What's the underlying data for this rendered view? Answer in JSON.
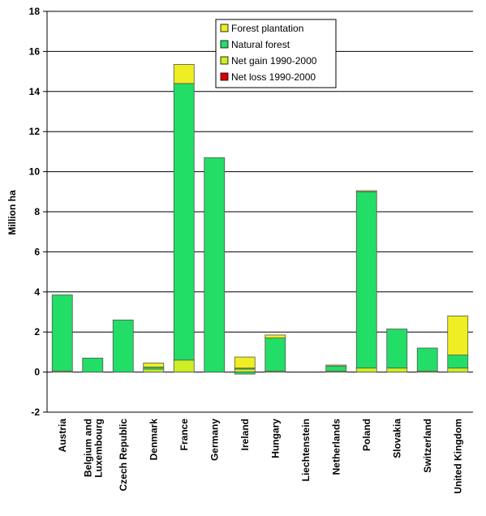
{
  "chart_data": {
    "type": "bar",
    "stacked": true,
    "ylabel": "Million ha",
    "xlabel": "",
    "ylim": [
      -2,
      18
    ],
    "yticks": [
      -2,
      0,
      2,
      4,
      6,
      8,
      10,
      12,
      14,
      16,
      18
    ],
    "grid": true,
    "legend_position": "top-center",
    "categories": [
      "Austria",
      "Belgium and Luxembourg",
      "Czech Republic",
      "Denmark",
      "France",
      "Germany",
      "Ireland",
      "Hungary",
      "Liechtenstein",
      "Netherlands",
      "Poland",
      "Slovakia",
      "Switzerland",
      "United Kingdom"
    ],
    "category_lines": [
      [
        "Austria"
      ],
      [
        "Belgium and",
        "Luxembourg"
      ],
      [
        "Czech Republic"
      ],
      [
        "Denmark"
      ],
      [
        "France"
      ],
      [
        "Germany"
      ],
      [
        "Ireland"
      ],
      [
        "Hungary"
      ],
      [
        "Liechtenstein"
      ],
      [
        "Netherlands"
      ],
      [
        "Poland"
      ],
      [
        "Slovakia"
      ],
      [
        "Switzerland"
      ],
      [
        "United Kingdom"
      ]
    ],
    "series": [
      {
        "name": "Net gain 1990-2000",
        "color": "#ccee22",
        "values": [
          0.05,
          0,
          0,
          0.15,
          0.6,
          0,
          0.15,
          0.05,
          0,
          0.05,
          0.2,
          0.2,
          0.05,
          0.2
        ]
      },
      {
        "name": "Natural forest",
        "color": "#22dd66",
        "values": [
          3.8,
          0.7,
          2.6,
          0.1,
          13.8,
          10.7,
          0.05,
          1.65,
          0,
          0.25,
          8.8,
          1.95,
          1.15,
          0.65
        ]
      },
      {
        "name": "Forest plantation",
        "color": "#eeee22",
        "values": [
          0,
          0,
          0,
          0.2,
          0.95,
          0,
          0.55,
          0.15,
          0,
          0.05,
          0.05,
          0,
          0,
          1.95
        ]
      },
      {
        "name": "Net loss 1990-2000",
        "color": "#dd0000",
        "values": [
          0,
          0,
          0,
          0,
          0,
          0,
          0,
          0,
          0,
          0,
          0,
          0,
          0,
          0
        ]
      }
    ],
    "below_zero": {
      "name": "Natural forest",
      "color": "#22dd66",
      "values": [
        0,
        0,
        0,
        0,
        0,
        0,
        -0.1,
        0,
        0,
        0,
        0,
        0,
        0,
        0
      ]
    },
    "legend": [
      {
        "label": "Forest plantation",
        "color": "#eeee22"
      },
      {
        "label": "Natural forest",
        "color": "#22dd66"
      },
      {
        "label": "Net gain 1990-2000",
        "color": "#ccee22"
      },
      {
        "label": "Net loss 1990-2000",
        "color": "#dd0000"
      }
    ]
  }
}
